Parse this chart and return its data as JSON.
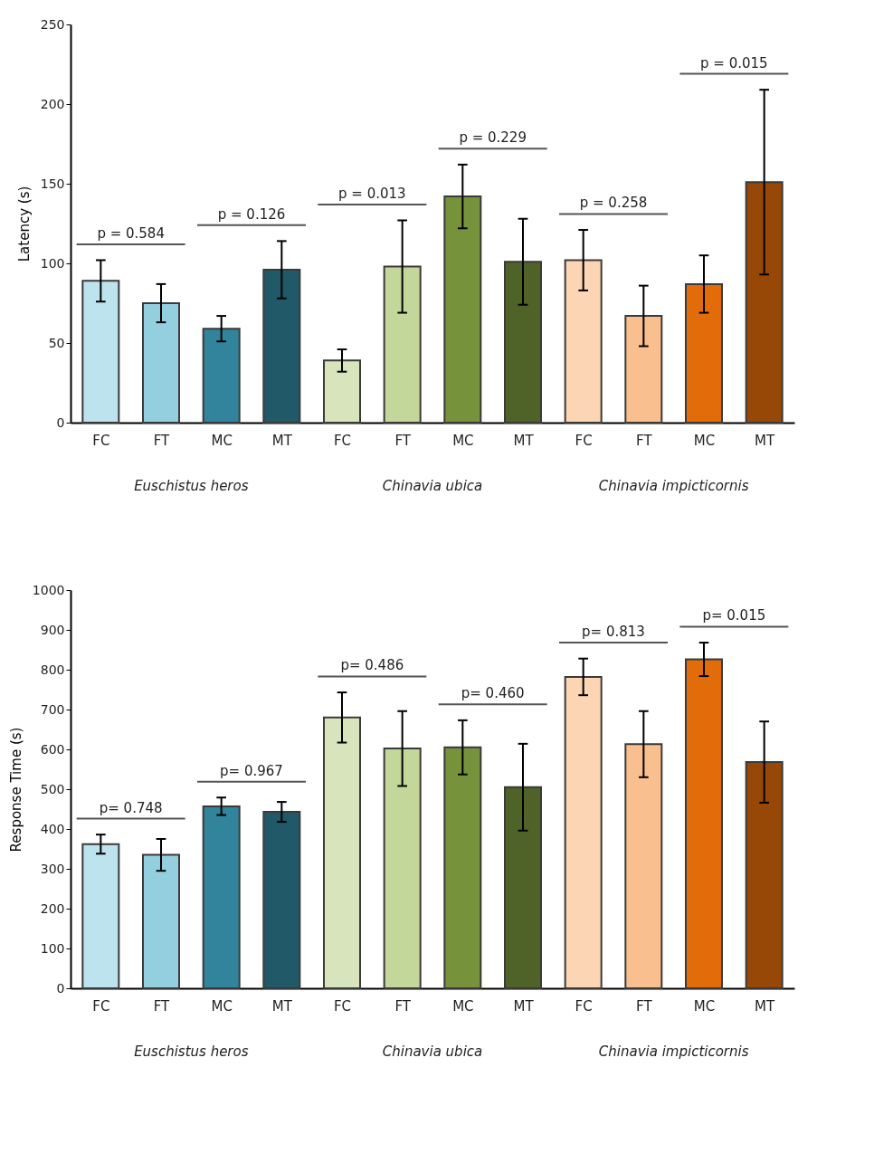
{
  "chart_data": [
    {
      "type": "bar",
      "ylabel": "Latency  (s)",
      "categories": [
        "FC",
        "FT",
        "MC",
        "MT",
        "FC",
        "FT",
        "MC",
        "MT",
        "FC",
        "FT",
        "MC",
        "MT"
      ],
      "values": [
        89,
        75,
        59,
        96,
        39,
        98,
        142,
        101,
        102,
        67,
        87,
        151
      ],
      "errors": [
        13,
        12,
        8,
        18,
        7,
        29,
        20,
        27,
        19,
        19,
        18,
        58
      ],
      "colors": [
        "#bde3ee",
        "#94cfe0",
        "#31849b",
        "#215968",
        "#d8e4bc",
        "#c4d79b",
        "#76933c",
        "#4f6228",
        "#fcd5b4",
        "#fabf8f",
        "#e26b0a",
        "#974706"
      ],
      "ylim": [
        0,
        250
      ],
      "yticks": [
        0,
        50,
        100,
        150,
        200,
        250
      ],
      "grid": false,
      "annotations": [
        "p = 0.584",
        "p = 0.126",
        "p = 0.013",
        "p = 0.229",
        "p = 0.258",
        "p = 0.015",
        "Euschistus heros",
        "Chinavia ubica",
        "Chinavia impicticornis"
      ]
    },
    {
      "type": "bar",
      "ylabel": "Response  Time (s)",
      "categories": [
        "FC",
        "FT",
        "MC",
        "MT",
        "FC",
        "FT",
        "MC",
        "MT",
        "FC",
        "FT",
        "MC",
        "MT"
      ],
      "values": [
        362,
        335,
        457,
        443,
        680,
        602,
        605,
        505,
        782,
        613,
        826,
        568
      ],
      "errors": [
        24,
        40,
        22,
        25,
        63,
        94,
        68,
        109,
        46,
        83,
        42,
        102
      ],
      "colors": [
        "#bde3ee",
        "#94cfe0",
        "#31849b",
        "#215968",
        "#d8e4bc",
        "#c4d79b",
        "#76933c",
        "#4f6228",
        "#fcd5b4",
        "#fabf8f",
        "#e26b0a",
        "#974706"
      ],
      "ylim": [
        0,
        1000
      ],
      "yticks": [
        0,
        100,
        200,
        300,
        400,
        500,
        600,
        700,
        800,
        900,
        1000
      ],
      "grid": false,
      "annotations": [
        "p= 0.748",
        "p= 0.967",
        "p= 0.486",
        "p= 0.460",
        "p= 0.813",
        "p= 0.015",
        "Euschistus heros",
        "Chinavia ubica",
        "Chinavia impicticornis"
      ]
    }
  ]
}
